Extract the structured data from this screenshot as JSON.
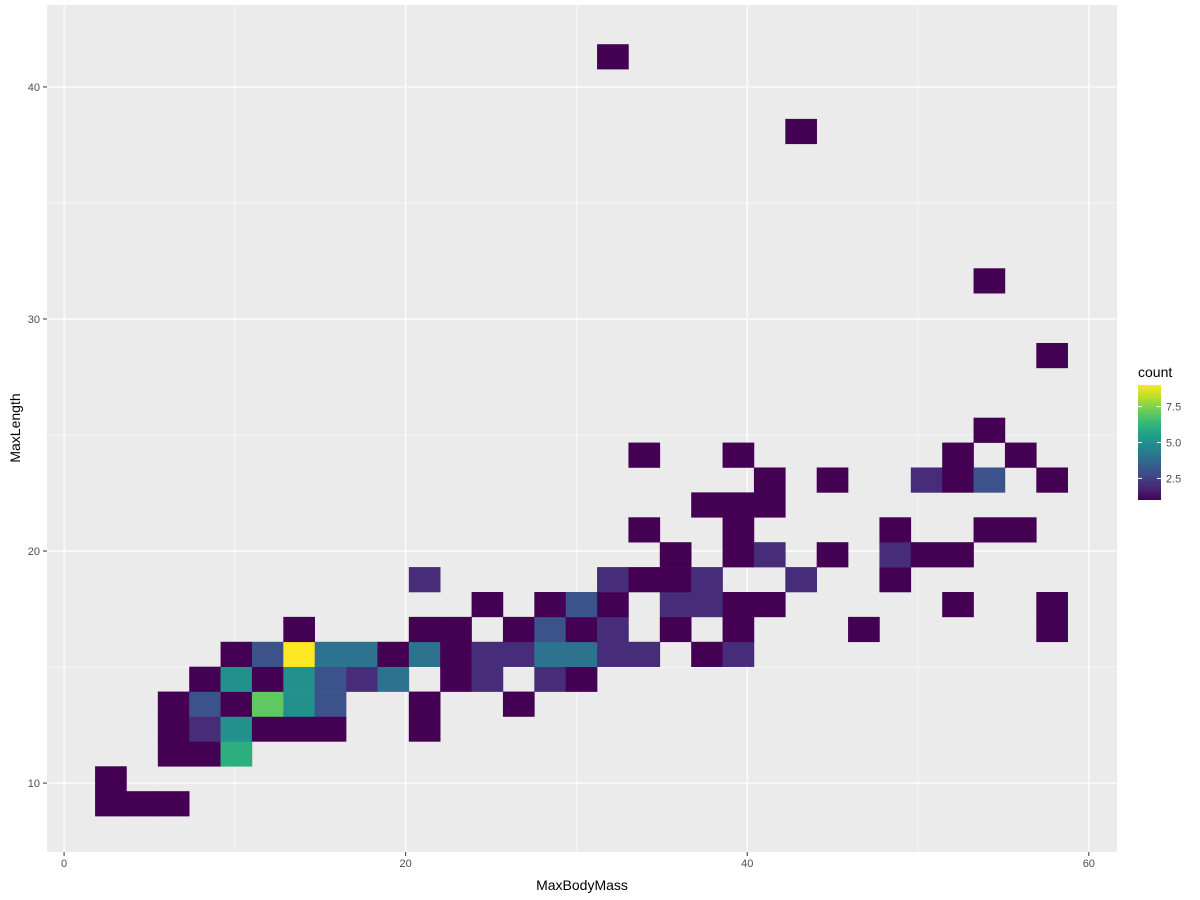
{
  "chart_data": {
    "type": "heatmap",
    "geom": "bin2d",
    "xlabel": "MaxBodyMass",
    "ylabel": "MaxLength",
    "xlim": [
      -1.0,
      61.65
    ],
    "ylim": [
      7.03,
      43.53
    ],
    "x_ticks": [
      0,
      20,
      40,
      60
    ],
    "y_ticks": [
      10,
      20,
      30,
      40
    ],
    "x_tick_labels": [
      "0",
      "20",
      "40",
      "60"
    ],
    "y_tick_labels": [
      "10",
      "20",
      "30",
      "40"
    ],
    "grid": true,
    "panel_background": "#EBEBEB",
    "x_bin_origin": 1.815,
    "x_binwidth": 1.837,
    "y_bin_origin": 8.578,
    "y_binwidth": 1.073,
    "cell_fields": [
      "xbin",
      "ybin",
      "count"
    ],
    "cells": [
      [
        0,
        0,
        1
      ],
      [
        1,
        0,
        1
      ],
      [
        2,
        0,
        1
      ],
      [
        0,
        1,
        1
      ],
      [
        2,
        2,
        1
      ],
      [
        3,
        2,
        1
      ],
      [
        4,
        2,
        6
      ],
      [
        2,
        3,
        1
      ],
      [
        3,
        3,
        2
      ],
      [
        4,
        3,
        5
      ],
      [
        5,
        3,
        1
      ],
      [
        6,
        3,
        1
      ],
      [
        7,
        3,
        1
      ],
      [
        10,
        3,
        1
      ],
      [
        2,
        4,
        1
      ],
      [
        3,
        4,
        3
      ],
      [
        4,
        4,
        1
      ],
      [
        5,
        4,
        7
      ],
      [
        6,
        4,
        5
      ],
      [
        7,
        4,
        3
      ],
      [
        10,
        4,
        1
      ],
      [
        13,
        4,
        1
      ],
      [
        3,
        5,
        1
      ],
      [
        4,
        5,
        5
      ],
      [
        5,
        5,
        1
      ],
      [
        6,
        5,
        5
      ],
      [
        7,
        5,
        3
      ],
      [
        8,
        5,
        2
      ],
      [
        9,
        5,
        4
      ],
      [
        11,
        5,
        1
      ],
      [
        12,
        5,
        2
      ],
      [
        14,
        5,
        2
      ],
      [
        15,
        5,
        1
      ],
      [
        4,
        6,
        1
      ],
      [
        5,
        6,
        3
      ],
      [
        6,
        6,
        9
      ],
      [
        7,
        6,
        4
      ],
      [
        8,
        6,
        4
      ],
      [
        9,
        6,
        1
      ],
      [
        10,
        6,
        4
      ],
      [
        11,
        6,
        1
      ],
      [
        12,
        6,
        2
      ],
      [
        13,
        6,
        2
      ],
      [
        14,
        6,
        4
      ],
      [
        15,
        6,
        4
      ],
      [
        16,
        6,
        2
      ],
      [
        17,
        6,
        2
      ],
      [
        19,
        6,
        1
      ],
      [
        20,
        6,
        2
      ],
      [
        6,
        7,
        1
      ],
      [
        10,
        7,
        1
      ],
      [
        11,
        7,
        1
      ],
      [
        13,
        7,
        1
      ],
      [
        14,
        7,
        3
      ],
      [
        15,
        7,
        1
      ],
      [
        16,
        7,
        2
      ],
      [
        18,
        7,
        1
      ],
      [
        20,
        7,
        1
      ],
      [
        24,
        7,
        1
      ],
      [
        30,
        7,
        1
      ],
      [
        12,
        8,
        1
      ],
      [
        14,
        8,
        1
      ],
      [
        15,
        8,
        3
      ],
      [
        16,
        8,
        1
      ],
      [
        18,
        8,
        2
      ],
      [
        19,
        8,
        2
      ],
      [
        20,
        8,
        1
      ],
      [
        21,
        8,
        1
      ],
      [
        27,
        8,
        1
      ],
      [
        30,
        8,
        1
      ],
      [
        10,
        9,
        2
      ],
      [
        16,
        9,
        2
      ],
      [
        17,
        9,
        1
      ],
      [
        18,
        9,
        1
      ],
      [
        19,
        9,
        2
      ],
      [
        22,
        9,
        2
      ],
      [
        25,
        9,
        1
      ],
      [
        18,
        10,
        1
      ],
      [
        20,
        10,
        1
      ],
      [
        21,
        10,
        2
      ],
      [
        23,
        10,
        1
      ],
      [
        25,
        10,
        2
      ],
      [
        26,
        10,
        1
      ],
      [
        27,
        10,
        1
      ],
      [
        17,
        11,
        1
      ],
      [
        20,
        11,
        1
      ],
      [
        25,
        11,
        1
      ],
      [
        28,
        11,
        1
      ],
      [
        29,
        11,
        1
      ],
      [
        19,
        12,
        1
      ],
      [
        20,
        12,
        1
      ],
      [
        21,
        12,
        1
      ],
      [
        21,
        13,
        1
      ],
      [
        23,
        13,
        1
      ],
      [
        26,
        13,
        2
      ],
      [
        27,
        13,
        1
      ],
      [
        28,
        13,
        3
      ],
      [
        30,
        13,
        1
      ],
      [
        17,
        14,
        1
      ],
      [
        20,
        14,
        1
      ],
      [
        27,
        14,
        1
      ],
      [
        29,
        14,
        1
      ],
      [
        28,
        15,
        1
      ],
      [
        30,
        18,
        1
      ],
      [
        28,
        21,
        1
      ],
      [
        22,
        27,
        1
      ],
      [
        16,
        30,
        1
      ]
    ],
    "legend": {
      "title": "count",
      "position": "right",
      "range": [
        1,
        9
      ],
      "ticks": [
        2.5,
        5.0,
        7.5
      ],
      "tick_labels": [
        "2.5",
        "5.0",
        "7.5"
      ],
      "colormap": "viridis",
      "colors": [
        "#440154",
        "#482878",
        "#3E4A89",
        "#31688E",
        "#26828E",
        "#1F9E89",
        "#35B779",
        "#6DCD59",
        "#B4DE2C",
        "#FDE725"
      ]
    }
  }
}
